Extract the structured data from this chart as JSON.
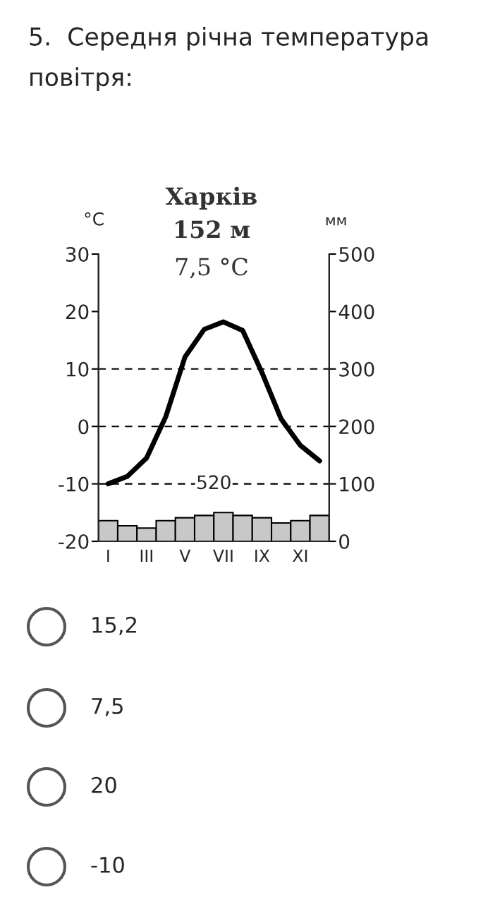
{
  "chart_data": {
    "type": "bar",
    "title": "5.  Середня річна температура повітря:",
    "subtitle": "Харків",
    "ylabel": "°C",
    "y2label": "мм",
    "categories": [
      "I",
      null,
      "III",
      null,
      "V",
      null,
      "VII",
      null,
      "IX",
      null,
      "XI",
      null
    ],
    "series": [
      {
        "axis": "y2",
        "color": "#c8c8c8",
        "values": [
          36,
          27,
          23,
          36,
          41,
          45,
          50,
          45,
          41,
          32,
          36,
          45
        ]
      },
      {
        "type": "line",
        "axis": "y",
        "color": "#000000",
        "values": [
          -10,
          -8.7,
          -5.5,
          1.7,
          12.1,
          16.9,
          18.2,
          16.7,
          9.4,
          1.3,
          -3.3,
          -6.0
        ]
      }
    ],
    "ylim": [
      -20,
      30
    ],
    "yticks": [
      -20,
      -10,
      0,
      10,
      20,
      30
    ],
    "y2lim": [
      0,
      500
    ],
    "y2ticks": [
      0,
      100,
      200,
      300,
      400,
      500
    ],
    "ref_lines": [
      {
        "axis": "y",
        "value": -10,
        "line_style": "dashed",
        "color": "#000000"
      },
      {
        "axis": "y",
        "value": 0,
        "line_style": "dashed",
        "color": "#000000"
      },
      {
        "axis": "y",
        "value": 10,
        "line_style": "dashed",
        "color": "#000000"
      }
    ],
    "annotations": [
      "152 м",
      "7,5 °C",
      "520",
      "15,2",
      "7,5",
      "20",
      "-10"
    ],
    "grid": false,
    "legend": false
  }
}
